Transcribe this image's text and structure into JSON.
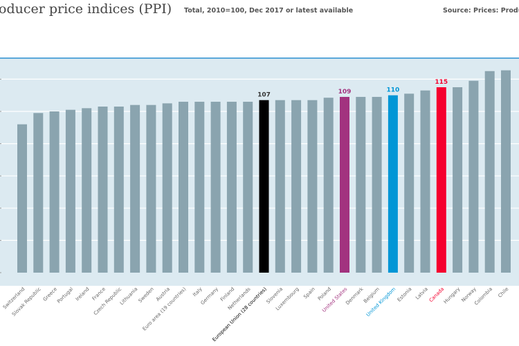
{
  "header": {
    "title": "oducer price indices (PPI)",
    "subtitle": "Total, 2010=100, Dec 2017 or latest available",
    "source": "Source: Prices: Producer p"
  },
  "colors": {
    "panel": "#dceaf1",
    "panel_border": "#2a8fcf",
    "bar_default": "#8aa4af",
    "european_union": "#000000",
    "united_states": "#a2337f",
    "united_kingdom": "#0096d6",
    "canada": "#f5002f",
    "label_default": "#666666"
  },
  "chart_data": {
    "type": "bar",
    "title": "Producer price indices (PPI)",
    "subtitle": "Total, 2010=100, Dec 2017 or latest available",
    "ylim": [
      0,
      130
    ],
    "yticks": [
      0,
      20,
      40,
      60,
      80,
      100,
      120
    ],
    "grid": true,
    "categories": [
      "Switzerland",
      "Slovak Republic",
      "Greece",
      "Portugal",
      "Ireland",
      "France",
      "Czech Republic",
      "Lithuania",
      "Sweden",
      "Austria",
      "Euro area (19 countries)",
      "Italy",
      "Germany",
      "Finland",
      "Netherlands",
      "European Union (28 countries)",
      "Slovenia",
      "Luxembourg",
      "Spain",
      "Poland",
      "United States",
      "Denmark",
      "Belgium",
      "United Kingdom",
      "Estonia",
      "Latvia",
      "Canada",
      "Hungary",
      "Norway",
      "Colombia",
      "Chile"
    ],
    "values": [
      92,
      99,
      100,
      101,
      102,
      103,
      103,
      104,
      104,
      105,
      106,
      106,
      106,
      106,
      106,
      107,
      107,
      107,
      107,
      108.5,
      109,
      109,
      109,
      110,
      111,
      113,
      115,
      115,
      119,
      125,
      125.5
    ],
    "highlights": [
      {
        "category": "European Union (28 countries)",
        "label": "107",
        "color_key": "european_union"
      },
      {
        "category": "United States",
        "label": "109",
        "color_key": "united_states"
      },
      {
        "category": "United Kingdom",
        "label": "110",
        "color_key": "united_kingdom"
      },
      {
        "category": "Canada",
        "label": "115",
        "color_key": "canada"
      }
    ]
  }
}
